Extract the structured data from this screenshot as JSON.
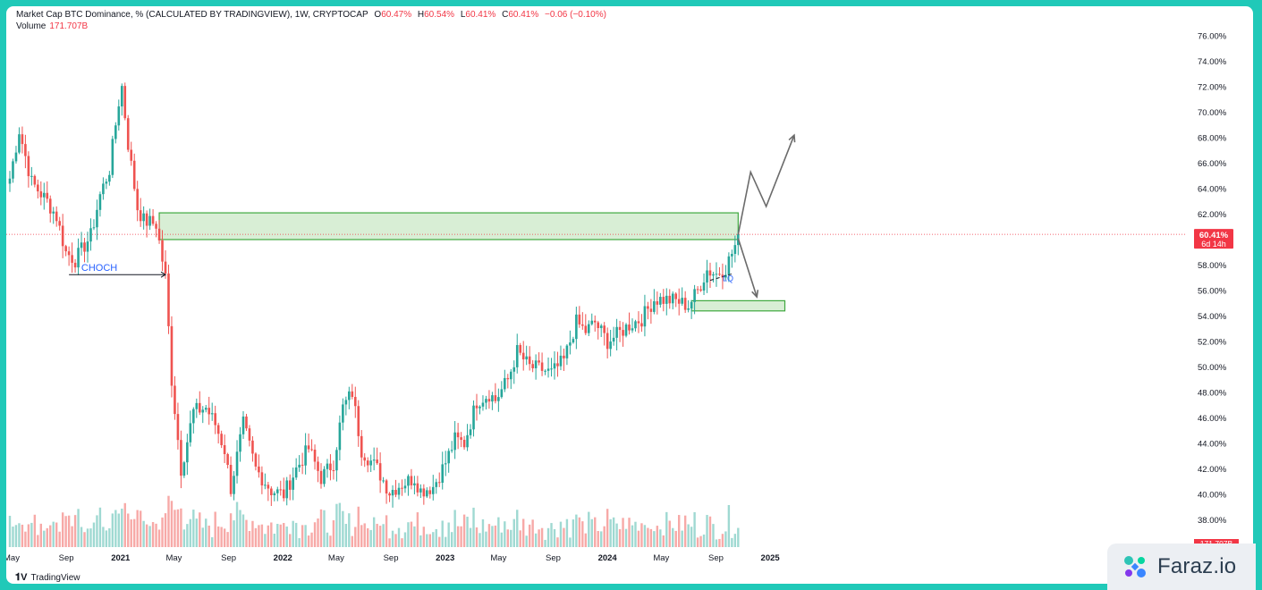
{
  "header": {
    "title": "Market Cap BTC Dominance, % (CALCULATED BY TRADINGVIEW), 1W, CRYPTOCAP",
    "o_label": "O",
    "o_value": "60.47%",
    "h_label": "H",
    "h_value": "60.54%",
    "l_label": "L",
    "l_value": "60.41%",
    "c_label": "C",
    "c_value": "60.41%",
    "change": "−0.06 (−0.10%)",
    "volume_label": "Volume",
    "volume_value": "171.707B"
  },
  "colors": {
    "up": "#26a69a",
    "down": "#ef5350",
    "up_vol": "#9fd9d2",
    "down_vol": "#f7a9a7",
    "zone_fill": "#d8eed5",
    "zone_border": "#3fa83f",
    "arrow": "#6b6b6b",
    "price_tag": "#f23645"
  },
  "chart_data": {
    "type": "candlestick",
    "ylim": [
      36.5,
      77
    ],
    "yticks": [
      "76.00%",
      "74.00%",
      "72.00%",
      "70.00%",
      "68.00%",
      "66.00%",
      "64.00%",
      "62.00%",
      "60.00%",
      "58.00%",
      "56.00%",
      "54.00%",
      "52.00%",
      "50.00%",
      "48.00%",
      "46.00%",
      "44.00%",
      "42.00%",
      "40.00%",
      "38.00%"
    ],
    "xticks": [
      "May",
      "Sep",
      "2021",
      "May",
      "Sep",
      "2022",
      "May",
      "Sep",
      "2023",
      "May",
      "Sep",
      "2024",
      "May",
      "Sep",
      "2025"
    ],
    "last_price": "60.41%",
    "countdown": "6d 14h",
    "volume_tag": "171.707B",
    "annotations": {
      "choch": "CHOCH",
      "liquidity": "LQ"
    },
    "anchors": [
      [
        "2020-04-27",
        64.8
      ],
      [
        "2020-05-18",
        68.6
      ],
      [
        "2020-06-15",
        64.5
      ],
      [
        "2020-07-20",
        63.0
      ],
      [
        "2020-08-10",
        61.8
      ],
      [
        "2020-08-31",
        59.0
      ],
      [
        "2020-09-21",
        58.4
      ],
      [
        "2020-10-26",
        60.3
      ],
      [
        "2020-11-16",
        63.5
      ],
      [
        "2020-12-07",
        65.5
      ],
      [
        "2020-12-28",
        70.8
      ],
      [
        "2021-01-04",
        72.0
      ],
      [
        "2021-01-18",
        67.5
      ],
      [
        "2021-02-08",
        62.5
      ],
      [
        "2021-02-22",
        61.5
      ],
      [
        "2021-03-22",
        61.2
      ],
      [
        "2021-04-12",
        57.0
      ],
      [
        "2021-04-26",
        49.0
      ],
      [
        "2021-05-17",
        42.0
      ],
      [
        "2021-05-31",
        44.2
      ],
      [
        "2021-06-14",
        46.5
      ],
      [
        "2021-07-12",
        46.8
      ],
      [
        "2021-08-02",
        45.5
      ],
      [
        "2021-08-23",
        43.5
      ],
      [
        "2021-09-06",
        40.5
      ],
      [
        "2021-10-04",
        45.5
      ],
      [
        "2021-11-01",
        42.0
      ],
      [
        "2021-12-06",
        40.3
      ],
      [
        "2022-01-03",
        40.0
      ],
      [
        "2022-01-31",
        42.0
      ],
      [
        "2022-02-28",
        43.6
      ],
      [
        "2022-03-28",
        41.3
      ],
      [
        "2022-04-25",
        42.5
      ],
      [
        "2022-05-16",
        46.8
      ],
      [
        "2022-06-06",
        48.0
      ],
      [
        "2022-06-27",
        43.5
      ],
      [
        "2022-08-01",
        42.0
      ],
      [
        "2022-08-29",
        40.2
      ],
      [
        "2022-09-19",
        40.7
      ],
      [
        "2022-10-24",
        41.3
      ],
      [
        "2022-11-07",
        40.3
      ],
      [
        "2022-12-05",
        40.6
      ],
      [
        "2023-01-02",
        42.5
      ],
      [
        "2023-01-23",
        44.3
      ],
      [
        "2023-02-13",
        44.0
      ],
      [
        "2023-03-13",
        47.3
      ],
      [
        "2023-04-10",
        47.9
      ],
      [
        "2023-04-24",
        47.4
      ],
      [
        "2023-05-22",
        49.0
      ],
      [
        "2023-06-12",
        51.2
      ],
      [
        "2023-07-10",
        50.0
      ],
      [
        "2023-08-07",
        49.8
      ],
      [
        "2023-08-28",
        49.5
      ],
      [
        "2023-09-25",
        50.5
      ],
      [
        "2023-10-23",
        53.5
      ],
      [
        "2023-11-13",
        52.8
      ],
      [
        "2023-12-04",
        53.5
      ],
      [
        "2024-01-01",
        52.0
      ],
      [
        "2024-01-22",
        52.5
      ],
      [
        "2024-02-19",
        53.3
      ],
      [
        "2024-03-18",
        53.8
      ],
      [
        "2024-04-15",
        55.3
      ],
      [
        "2024-05-06",
        55.3
      ],
      [
        "2024-06-03",
        55.2
      ],
      [
        "2024-07-01",
        54.8
      ],
      [
        "2024-07-22",
        56.0
      ],
      [
        "2024-08-12",
        57.6
      ],
      [
        "2024-09-02",
        57.3
      ],
      [
        "2024-09-23",
        57.8
      ],
      [
        "2024-10-14",
        59.5
      ],
      [
        "2024-10-21",
        60.41
      ]
    ],
    "zones": [
      {
        "from": "2021-03-29",
        "to": "2024-10-21",
        "low": 60.0,
        "high": 62.1
      },
      {
        "from": "2024-07-08",
        "to": "2025-02-03",
        "low": 54.4,
        "high": 55.2
      }
    ],
    "choch_line": {
      "from": "2020-09-07",
      "to": "2021-04-12",
      "level": 57.25
    },
    "lq_line": {
      "from": "2024-08-19",
      "to": "2024-10-07",
      "level_from": 56.8,
      "level_to": 57.3
    },
    "scenario_up": [
      [
        "2024-10-21",
        60.4
      ],
      [
        "2024-11-18",
        65.3
      ],
      [
        "2024-12-23",
        62.6
      ],
      [
        "2025-02-24",
        68.2
      ]
    ],
    "scenario_down": [
      [
        "2024-10-21",
        60.1
      ],
      [
        "2024-12-02",
        55.5
      ]
    ]
  }
}
